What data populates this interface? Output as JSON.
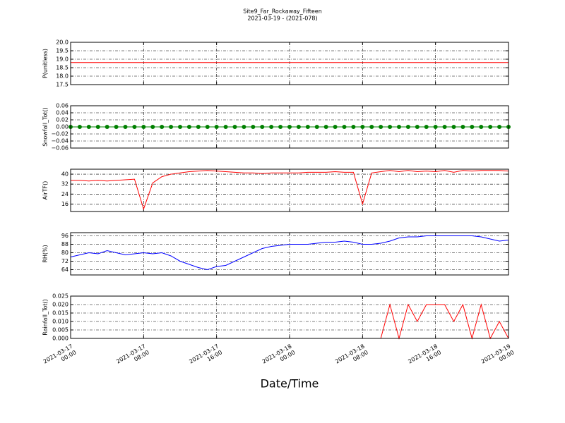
{
  "chart_data": {
    "type": "line",
    "title": "Site9_Far_Rockaway_Fifteen",
    "subtitle": "2021-03-19 - (2021-078)",
    "xlabel": "Date/Time",
    "grid": true,
    "x": [
      "2021-03-17 00:00",
      "2021-03-17 01:00",
      "2021-03-17 02:00",
      "2021-03-17 03:00",
      "2021-03-17 04:00",
      "2021-03-17 05:00",
      "2021-03-17 06:00",
      "2021-03-17 07:00",
      "2021-03-17 08:00",
      "2021-03-17 09:00",
      "2021-03-17 10:00",
      "2021-03-17 11:00",
      "2021-03-17 12:00",
      "2021-03-17 13:00",
      "2021-03-17 14:00",
      "2021-03-17 15:00",
      "2021-03-17 16:00",
      "2021-03-17 17:00",
      "2021-03-17 18:00",
      "2021-03-17 19:00",
      "2021-03-17 20:00",
      "2021-03-17 21:00",
      "2021-03-17 22:00",
      "2021-03-17 23:00",
      "2021-03-18 00:00",
      "2021-03-18 01:00",
      "2021-03-18 02:00",
      "2021-03-18 03:00",
      "2021-03-18 04:00",
      "2021-03-18 05:00",
      "2021-03-18 06:00",
      "2021-03-18 07:00",
      "2021-03-18 08:00",
      "2021-03-18 09:00",
      "2021-03-18 10:00",
      "2021-03-18 11:00",
      "2021-03-18 12:00",
      "2021-03-18 13:00",
      "2021-03-18 14:00",
      "2021-03-18 15:00",
      "2021-03-18 16:00",
      "2021-03-18 17:00",
      "2021-03-18 18:00",
      "2021-03-18 19:00",
      "2021-03-18 20:00",
      "2021-03-18 21:00",
      "2021-03-18 22:00",
      "2021-03-18 23:00",
      "2021-03-19 00:00"
    ],
    "xlim": [
      "2021-03-17 00:00",
      "2021-03-19 00:00"
    ],
    "xticks": [
      "2021-03-17 00:00",
      "2021-03-17 08:00",
      "2021-03-17 16:00",
      "2021-03-18 00:00",
      "2021-03-18 08:00",
      "2021-03-18 16:00",
      "2021-03-19 00:00"
    ],
    "panels": [
      {
        "ylabel": "P(unitless)",
        "color": "#ff0000",
        "markers": false,
        "ylim": [
          17.5,
          20
        ],
        "yticks": [
          17.5,
          {
            "value": 18,
            "label": "18.0"
          },
          18.5,
          {
            "value": 19,
            "label": "19.0"
          },
          19.5,
          {
            "value": 20,
            "label": "20.0"
          }
        ],
        "values": [
          18.8,
          18.8,
          18.8,
          18.8,
          18.8,
          18.8,
          18.8,
          18.8,
          18.8,
          18.8,
          18.8,
          18.8,
          18.8,
          18.8,
          18.8,
          18.8,
          18.8,
          18.8,
          18.8,
          18.8,
          18.8,
          18.8,
          18.8,
          18.8,
          18.8,
          18.8,
          18.8,
          18.8,
          18.8,
          18.8,
          18.8,
          18.8,
          18.8,
          18.8,
          18.8,
          18.8,
          18.8,
          18.8,
          18.8,
          18.8,
          18.8,
          18.8,
          18.8,
          18.8,
          18.8,
          18.8,
          18.8,
          18.8,
          18.8
        ]
      },
      {
        "ylabel": "Snowfall_Tot()",
        "color": "#008000",
        "markers": true,
        "ylim": [
          -0.06,
          0.06
        ],
        "yticks": [
          {
            "value": -0.06,
            "label": "−0.06"
          },
          {
            "value": -0.04,
            "label": "−0.04"
          },
          {
            "value": -0.02,
            "label": "−0.02"
          },
          {
            "value": 0,
            "label": "0.00"
          },
          0.02,
          0.04,
          0.06
        ],
        "values": [
          0,
          0,
          0,
          0,
          0,
          0,
          0,
          0,
          0,
          0,
          0,
          0,
          0,
          0,
          0,
          0,
          0,
          0,
          0,
          0,
          0,
          0,
          0,
          0,
          0,
          0,
          0,
          0,
          0,
          0,
          0,
          0,
          0,
          0,
          0,
          0,
          0,
          0,
          0,
          0,
          0,
          0,
          0,
          0,
          0,
          0,
          0,
          0,
          0
        ]
      },
      {
        "ylabel": "AirTF()",
        "color": "#ff0000",
        "markers": false,
        "ylim": [
          10,
          44
        ],
        "yticks": [
          16,
          24,
          32,
          40
        ],
        "values": [
          35,
          35,
          34.5,
          35,
          34.5,
          35,
          35.5,
          36,
          12,
          33,
          38,
          40,
          41,
          42,
          42.5,
          43,
          42.5,
          42,
          41.5,
          41,
          41,
          40.5,
          41,
          41,
          41,
          41,
          41.5,
          41.5,
          41.5,
          42,
          41.5,
          41.5,
          16,
          41,
          42,
          43,
          42,
          43,
          42,
          42.5,
          42,
          43,
          41.5,
          43,
          42.5,
          43,
          43,
          43,
          42.5
        ]
      },
      {
        "ylabel": "RH(%)",
        "color": "#0000ff",
        "markers": false,
        "ylim": [
          59,
          99
        ],
        "yticks": [
          64,
          72,
          80,
          88,
          96
        ],
        "values": [
          76,
          78,
          80,
          79,
          82,
          80,
          78,
          79,
          80,
          79,
          80,
          77,
          72,
          69,
          66,
          64,
          67,
          68,
          72,
          76,
          80,
          84,
          86,
          87,
          88,
          88,
          88,
          89,
          90,
          90,
          91,
          90,
          88,
          88,
          89,
          91,
          94,
          95,
          95,
          96,
          96,
          96,
          96,
          96,
          96,
          95,
          93,
          91,
          92
        ]
      },
      {
        "ylabel": "Rainfall_Tot()",
        "color": "#ff0000",
        "markers": false,
        "ylim": [
          0,
          0.025
        ],
        "yticks": [
          {
            "value": 0,
            "label": "0.000"
          },
          0.005,
          {
            "value": 0.01,
            "label": "0.010"
          },
          0.015,
          {
            "value": 0.02,
            "label": "0.020"
          },
          0.025
        ],
        "values": [
          0,
          0,
          0,
          0,
          0,
          0,
          0,
          0,
          0,
          0,
          0,
          0,
          0,
          0,
          0,
          0,
          0,
          0,
          0,
          0,
          0,
          0,
          0,
          0,
          0,
          0,
          0,
          0,
          0,
          0,
          0,
          0,
          0,
          0,
          0,
          0.02,
          0,
          0.02,
          0.01,
          0.02,
          0.02,
          0.02,
          0.01,
          0.02,
          0,
          0.02,
          0,
          0.01,
          0
        ]
      }
    ]
  }
}
